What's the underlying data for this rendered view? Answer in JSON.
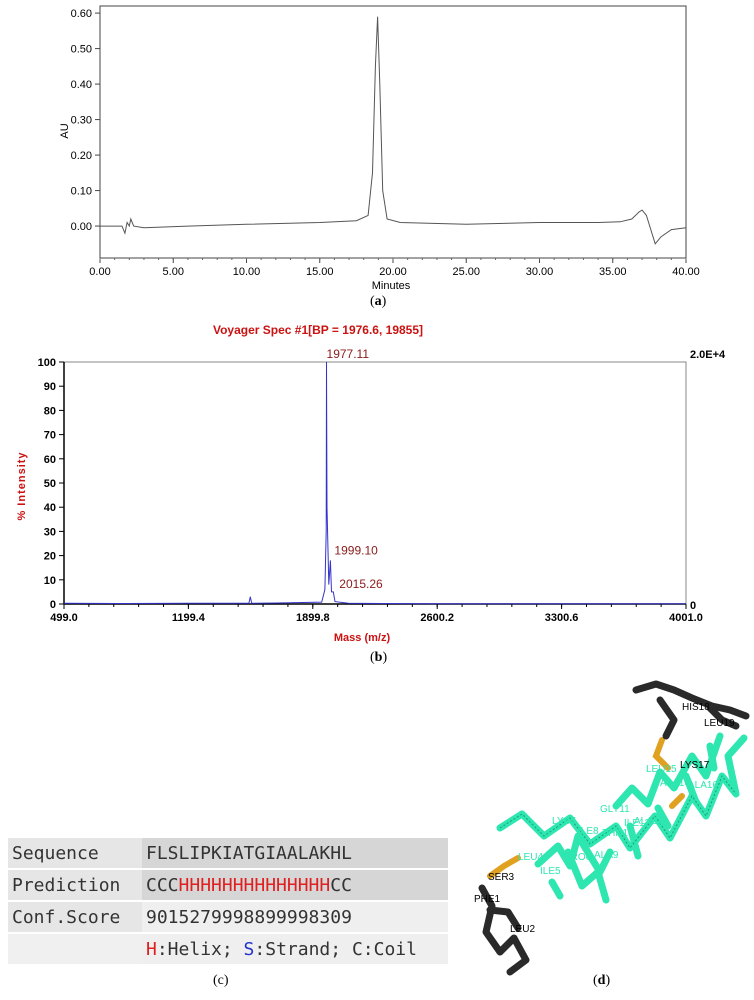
{
  "panel_a": {
    "caption_letter": "a",
    "chart_data": {
      "type": "line",
      "title": "",
      "xlabel": "Minutes",
      "ylabel": "AU",
      "xlim": [
        0,
        40
      ],
      "ylim": [
        -0.09,
        0.62
      ],
      "x_ticks": [
        "0.00",
        "5.00",
        "10.00",
        "15.00",
        "20.00",
        "25.00",
        "30.00",
        "35.00",
        "40.00"
      ],
      "y_ticks": [
        "0.00",
        "0.10",
        "0.20",
        "0.30",
        "0.40",
        "0.50",
        "0.60"
      ],
      "series": [
        {
          "x": [
            0,
            1.5,
            1.7,
            1.85,
            2.0,
            2.1,
            2.3,
            3,
            6,
            10,
            15,
            17.5,
            18.3,
            18.6,
            18.8,
            18.95,
            19.1,
            19.3,
            19.6,
            20.5,
            25,
            30,
            34,
            35.5,
            36.3,
            36.8,
            37.0,
            37.3,
            37.6,
            37.9,
            38.3,
            39,
            40
          ],
          "y": [
            0.0,
            0.0,
            -0.02,
            0.01,
            0.0,
            0.02,
            0.0,
            -0.005,
            0.0,
            0.005,
            0.01,
            0.015,
            0.03,
            0.15,
            0.45,
            0.59,
            0.4,
            0.1,
            0.02,
            0.01,
            0.005,
            0.01,
            0.01,
            0.012,
            0.02,
            0.04,
            0.045,
            0.03,
            -0.01,
            -0.05,
            -0.03,
            -0.01,
            -0.005
          ]
        }
      ],
      "grid": false,
      "legend": "none"
    }
  },
  "panel_b": {
    "caption_letter": "b",
    "chart_data": {
      "type": "line",
      "title": "Voyager Spec #1[BP = 1976.6, 19855]",
      "xlabel": "Mass (m/z)",
      "ylabel": "% Intensity",
      "right_axis_top_label": "2.0E+4",
      "right_axis_bottom_label": "0",
      "xlim": [
        499.0,
        4001.0
      ],
      "ylim": [
        0,
        100
      ],
      "x_ticks": [
        "499.0",
        "1199.4",
        "1899.8",
        "2600.2",
        "3300.6",
        "4001.0"
      ],
      "y_ticks": [
        "0",
        "10",
        "20",
        "30",
        "40",
        "50",
        "60",
        "70",
        "80",
        "90",
        "100"
      ],
      "series": [
        {
          "x": [
            499,
            800,
            1200,
            1540,
            1548,
            1556,
            1700,
            1950,
            1968,
            1975,
            1977.11,
            1980,
            1990,
            1999.1,
            2005,
            2015.26,
            2025,
            2100,
            2600,
            3300,
            4001
          ],
          "y": [
            0.3,
            0.2,
            0.3,
            0.3,
            3,
            0.3,
            0.4,
            0.8,
            6,
            30,
            100,
            40,
            8,
            18,
            5,
            5,
            1,
            0.3,
            0.1,
            0.1,
            0.1
          ]
        }
      ],
      "peak_labels": [
        {
          "x": 1977.11,
          "y": 100,
          "text": "1977.11"
        },
        {
          "x": 1999.1,
          "y": 18,
          "text": "1999.10"
        },
        {
          "x": 2015.26,
          "y": 5,
          "text": "2015.26"
        }
      ],
      "colors": {
        "line": "#3333cc",
        "label": "#cc1111",
        "peak_label": "#8b1a1a"
      }
    }
  },
  "panel_c": {
    "caption_letter": "c",
    "rows": [
      {
        "label": "Sequence",
        "value": "FLSLIPKIATGIAALAKHL"
      },
      {
        "label": "Prediction",
        "prefix": "CCC",
        "helix": "HHHHHHHHHHHHHH",
        "suffix": "CC"
      },
      {
        "label": "Conf.Score",
        "value": "9015279998899998309"
      }
    ],
    "legend": {
      "h": "H",
      "h_text": ":Helix; ",
      "s": "S",
      "s_text": ":Strand; ",
      "c_text": "C:Coil"
    }
  },
  "panel_d": {
    "caption_letter": "d",
    "residue_labels": [
      "PHE1",
      "LEU2",
      "SER3",
      "LEU4",
      "ILE5",
      "PRO6",
      "LYS7",
      "ILE8",
      "ALA9",
      "THR10",
      "GLY11",
      "ILE12",
      "ALA13",
      "ALA14",
      "LEU15",
      "ALA16",
      "LYS17",
      "HIS18",
      "LEU19"
    ],
    "colors": {
      "helix": "#2ee6b0",
      "coil": "#2a2a2a",
      "side": "#e0a020"
    }
  }
}
